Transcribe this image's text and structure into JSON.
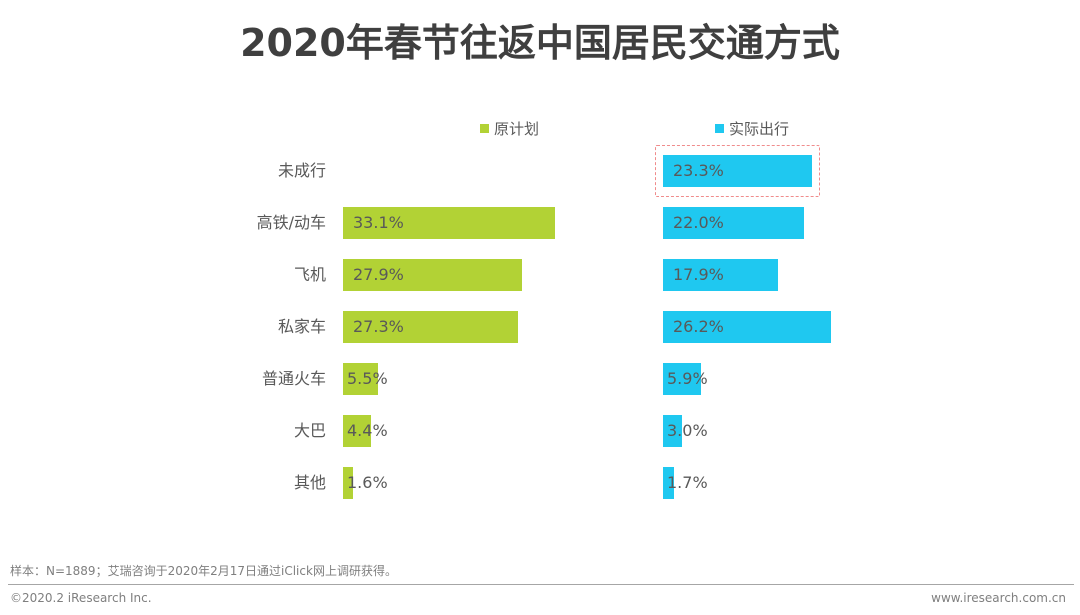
{
  "chart_data": {
    "type": "bar",
    "orientation": "horizontal",
    "title": "2020年春节往返中国居民交通方式",
    "categories": [
      "未成行",
      "高铁/动车",
      "飞机",
      "私家车",
      "普通火车",
      "大巴",
      "其他"
    ],
    "series": [
      {
        "name": "原计划",
        "color": "#b2d235",
        "values": [
          null,
          33.1,
          27.9,
          27.3,
          5.5,
          4.4,
          1.6
        ],
        "labels": [
          "",
          "33.1%",
          "27.9%",
          "27.3%",
          "5.5%",
          "4.4%",
          "1.6%"
        ]
      },
      {
        "name": "实际出行",
        "color": "#1fc8f0",
        "values": [
          23.3,
          22.0,
          17.9,
          26.2,
          5.9,
          3.0,
          1.7
        ],
        "labels": [
          "23.3%",
          "22.0%",
          "17.9%",
          "26.2%",
          "5.9%",
          "3.0%",
          "1.7%"
        ]
      }
    ],
    "unit": "%",
    "highlight": {
      "series": "实际出行",
      "category": "未成行",
      "color": "#f08c8c"
    },
    "legend_position": "top",
    "grid": false
  },
  "footer": {
    "note": "样本：N=1889；艾瑞咨询于2020年2月17日通过iClick网上调研获得。",
    "copyright": "©2020.2 iResearch Inc.",
    "url": "www.iresearch.com.cn"
  }
}
